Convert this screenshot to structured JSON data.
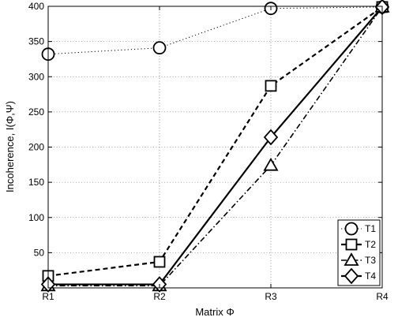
{
  "chart_data": {
    "type": "line",
    "title": "",
    "xlabel": "Matrix Φ",
    "ylabel": "Incoherence, I(Φ,Ψ)",
    "categories": [
      "R1",
      "R2",
      "R3",
      "R4"
    ],
    "ylim": [
      0,
      400
    ],
    "yticks": [
      50,
      100,
      150,
      200,
      250,
      300,
      350,
      400
    ],
    "grid": true,
    "legend_position": "bottom-right",
    "series": [
      {
        "name": "T1",
        "values": [
          332,
          341,
          397,
          399
        ],
        "style": "dotted",
        "marker": "circle"
      },
      {
        "name": "T2",
        "values": [
          17,
          37,
          287,
          399
        ],
        "style": "dashed",
        "marker": "square"
      },
      {
        "name": "T3",
        "values": [
          3,
          3,
          174,
          399
        ],
        "style": "dashdot",
        "marker": "triangle"
      },
      {
        "name": "T4",
        "values": [
          5,
          5,
          214,
          399
        ],
        "style": "solid",
        "marker": "diamond"
      }
    ]
  }
}
